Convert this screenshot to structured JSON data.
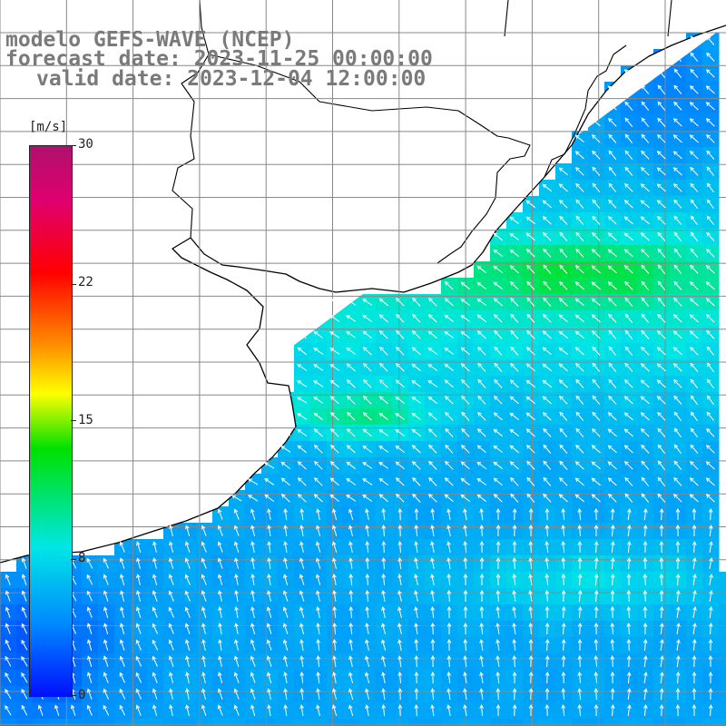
{
  "title_lines": [
    "modelo GEFS-WAVE (NCEP)",
    "forecast date: 2023-11-25 00:00:00",
    "valid date: 2023-12-04 12:00:00"
  ],
  "colorbar": {
    "unit": "[m/s]",
    "ticks": [
      "30",
      "22",
      "15",
      "8",
      "0"
    ],
    "min": 0,
    "max": 30,
    "colors": [
      "#0010ff",
      "#0088ff",
      "#00e6e6",
      "#00e000",
      "#ffff00",
      "#ff8c00",
      "#ff0000",
      "#e0006e",
      "#b0106e"
    ]
  },
  "map": {
    "region": "South Atlantic coast (southern Brazil / Uruguay / Argentina)",
    "land_color": "#ffffff",
    "coast_color": "#000000",
    "grid_color": "#888888",
    "arrow_color": "#ffffff",
    "dominant_wind_direction": "northwest-bound",
    "wind_speed_range_ms": [
      4,
      13
    ]
  }
}
